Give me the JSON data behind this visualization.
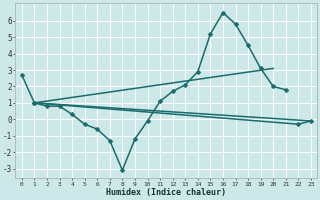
{
  "xlabel": "Humidex (Indice chaleur)",
  "bg_color": "#cce8e8",
  "grid_color": "#ffffff",
  "line_color": "#1a6b6b",
  "xlim": [
    -0.5,
    23.5
  ],
  "ylim": [
    -3.6,
    7.1
  ],
  "yticks": [
    -3,
    -2,
    -1,
    0,
    1,
    2,
    3,
    4,
    5,
    6
  ],
  "xticks": [
    0,
    1,
    2,
    3,
    4,
    5,
    6,
    7,
    8,
    9,
    10,
    11,
    12,
    13,
    14,
    15,
    16,
    17,
    18,
    19,
    20,
    21,
    22,
    23
  ],
  "line1_x": [
    0,
    1,
    2,
    3,
    4,
    5,
    6,
    7,
    8,
    9,
    10,
    11,
    12,
    13,
    14,
    15,
    16,
    17,
    18,
    19,
    20,
    21
  ],
  "line1_y": [
    2.7,
    1.0,
    0.8,
    0.8,
    0.3,
    -0.3,
    -0.6,
    -1.3,
    -3.1,
    -1.2,
    -0.1,
    1.1,
    1.7,
    2.1,
    2.9,
    5.2,
    6.5,
    5.8,
    4.5,
    3.1,
    2.0,
    1.8
  ],
  "line2_x": [
    1,
    22,
    23
  ],
  "line2_y": [
    1.0,
    -0.3,
    -0.1
  ],
  "line3_x": [
    1,
    20
  ],
  "line3_y": [
    1.0,
    3.1
  ],
  "line4_x": [
    1,
    23
  ],
  "line4_y": [
    1.0,
    -0.1
  ],
  "lw": 1.1,
  "ms": 2.5
}
